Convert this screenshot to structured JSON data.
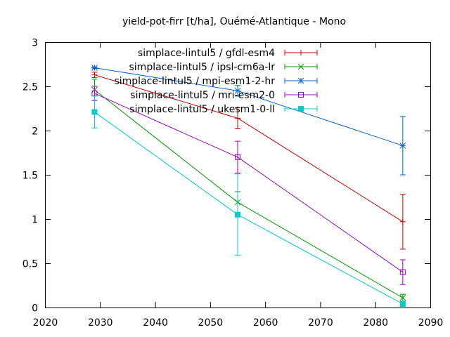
{
  "chart_data": {
    "type": "line",
    "title": "yield-pot-firr [t/ha], Ouémé-Atlantique - Mono",
    "xlabel": "",
    "ylabel": "",
    "xlim": [
      2020,
      2090
    ],
    "ylim": [
      0,
      3
    ],
    "xticks": [
      2020,
      2030,
      2040,
      2050,
      2060,
      2070,
      2080,
      2090
    ],
    "yticks": [
      0,
      0.5,
      1,
      1.5,
      2,
      2.5,
      3
    ],
    "xtick_labels": [
      "2020",
      "2030",
      "2040",
      "2050",
      "2060",
      "2070",
      "2080",
      "2090"
    ],
    "ytick_labels": [
      "0",
      "0.5",
      "1",
      "1.5",
      "2",
      "2.5",
      "3"
    ],
    "grid": false,
    "legend_position": "top-right",
    "x": [
      2029,
      2055,
      2085
    ],
    "series": [
      {
        "name": "simplace-lintul5 / gfdl-esm4",
        "color": "#cc0000",
        "marker": "plus",
        "values": [
          2.63,
          2.14,
          0.97
        ],
        "err": [
          0.03,
          0.12,
          0.31
        ]
      },
      {
        "name": "simplace-lintul5 / ipsl-cm6a-lr",
        "color": "#009900",
        "marker": "cross",
        "values": [
          2.46,
          1.19,
          0.11
        ],
        "err": [
          0.12,
          0.12,
          0.04
        ]
      },
      {
        "name": "simplace-lintul5 / mpi-esm1-2-hr",
        "color": "#0066cc",
        "marker": "star",
        "values": [
          2.71,
          2.45,
          1.83
        ],
        "err": [
          0.01,
          0.06,
          0.33
        ]
      },
      {
        "name": "simplace-lintul5 / mri-esm2-0",
        "color": "#9900cc",
        "marker": "square-open",
        "values": [
          2.42,
          1.7,
          0.4
        ],
        "err": [
          0.08,
          0.18,
          0.14
        ]
      },
      {
        "name": "simplace-lintul5 / ukesm1-0-ll",
        "color": "#00cccc",
        "marker": "square-filled",
        "values": [
          2.21,
          1.05,
          0.04
        ],
        "err": [
          0.18,
          0.46,
          0.02
        ]
      }
    ]
  }
}
